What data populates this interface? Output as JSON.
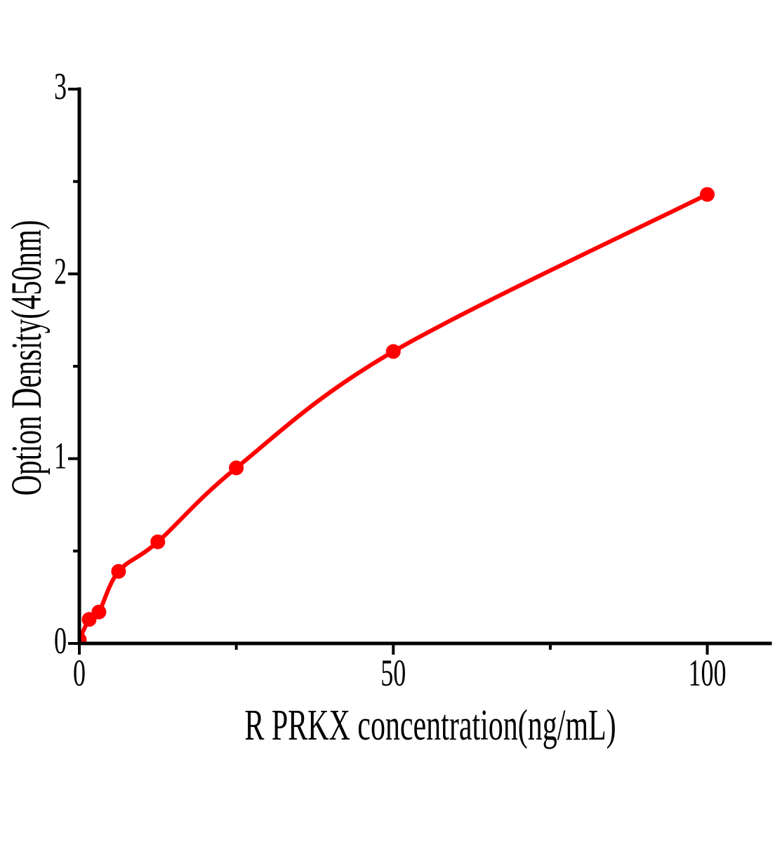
{
  "figure": {
    "background": "#ffffff",
    "kind": "ELISA standard curve plot"
  },
  "chart_data": {
    "type": "scatter",
    "title": "",
    "xlabel": "R PRKX concentration(ng/mL)",
    "ylabel": "Option Density(450nm)",
    "xlim": [
      0,
      110
    ],
    "ylim": [
      0,
      3
    ],
    "grid": false,
    "legend_position": "none",
    "tick_direction": "out",
    "axis_color": "#000000",
    "series": [
      {
        "name": "standard-curve",
        "marker": "filled-circle",
        "color": "#ff0000",
        "line_style": "smooth-solid",
        "points": [
          {
            "x": 0,
            "y": 0.02
          },
          {
            "x": 1.56,
            "y": 0.13
          },
          {
            "x": 3.12,
            "y": 0.17
          },
          {
            "x": 6.25,
            "y": 0.39
          },
          {
            "x": 12.5,
            "y": 0.55
          },
          {
            "x": 25,
            "y": 0.95
          },
          {
            "x": 50,
            "y": 1.58
          },
          {
            "x": 100,
            "y": 2.43
          }
        ]
      }
    ],
    "x_ticks": {
      "major": [
        0,
        50,
        100
      ],
      "minor": [
        25,
        75
      ],
      "labels": [
        "0",
        "50",
        "100"
      ]
    },
    "y_ticks": {
      "major": [
        0,
        1,
        2,
        3
      ],
      "minor": [
        0.5,
        1.5,
        2.5
      ],
      "labels": [
        "0",
        "1",
        "2",
        "3"
      ]
    }
  }
}
